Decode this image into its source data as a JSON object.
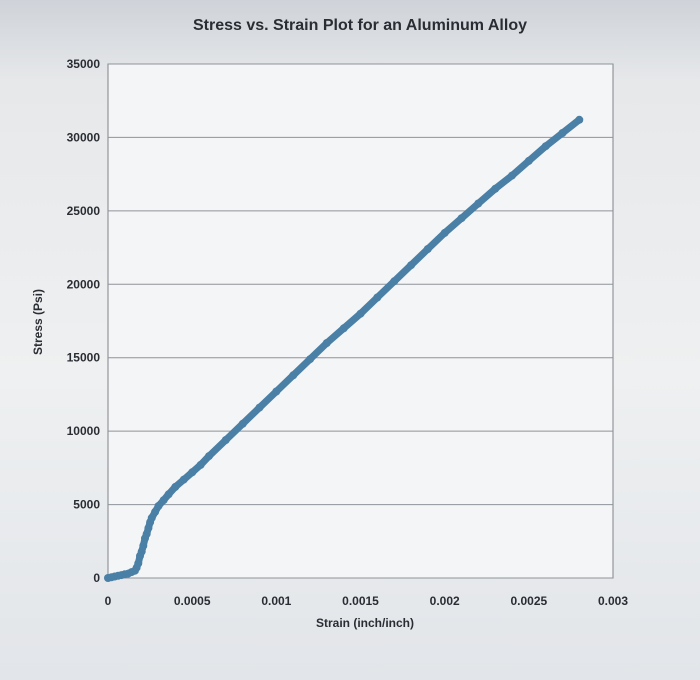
{
  "chart_data": {
    "type": "scatter",
    "title": "Stress vs. Strain Plot for an Aluminum Alloy",
    "xlabel": "Strain (inch/inch)",
    "ylabel": "Stress (Psi)",
    "xlim": [
      0,
      0.003
    ],
    "ylim": [
      0,
      35000
    ],
    "x_ticks": [
      0,
      0.0005,
      0.001,
      0.0015,
      0.002,
      0.0025,
      0.003
    ],
    "x_tick_labels": [
      "0",
      "0.0005",
      "0.001",
      "0.0015",
      "0.002",
      "0.0025",
      "0.003"
    ],
    "y_ticks": [
      0,
      5000,
      10000,
      15000,
      20000,
      25000,
      30000,
      35000
    ],
    "y_tick_labels": [
      "0",
      "5000",
      "10000",
      "15000",
      "20000",
      "25000",
      "30000",
      "35000"
    ],
    "grid": true,
    "legend": "none",
    "series_color": "#4a7fa6",
    "points": [
      [
        0.0,
        0
      ],
      [
        2e-05,
        50
      ],
      [
        4e-05,
        100
      ],
      [
        6e-05,
        150
      ],
      [
        8e-05,
        200
      ],
      [
        0.0001,
        250
      ],
      [
        0.00012,
        300
      ],
      [
        0.00014,
        400
      ],
      [
        0.00016,
        500
      ],
      [
        0.00017,
        700
      ],
      [
        0.00018,
        1000
      ],
      [
        0.00019,
        1500
      ],
      [
        0.0002,
        1800
      ],
      [
        0.00021,
        2200
      ],
      [
        0.00022,
        2700
      ],
      [
        0.00023,
        3000
      ],
      [
        0.00024,
        3400
      ],
      [
        0.00025,
        3800
      ],
      [
        0.00026,
        4100
      ],
      [
        0.00028,
        4500
      ],
      [
        0.0003,
        4900
      ],
      [
        0.00033,
        5300
      ],
      [
        0.00036,
        5700
      ],
      [
        0.0004,
        6200
      ],
      [
        0.00045,
        6700
      ],
      [
        0.0005,
        7200
      ],
      [
        0.00055,
        7700
      ],
      [
        0.0006,
        8300
      ],
      [
        0.0007,
        9400
      ],
      [
        0.0008,
        10500
      ],
      [
        0.0009,
        11600
      ],
      [
        0.001,
        12700
      ],
      [
        0.0011,
        13800
      ],
      [
        0.0012,
        14900
      ],
      [
        0.0013,
        16000
      ],
      [
        0.0014,
        17000
      ],
      [
        0.0015,
        18000
      ],
      [
        0.0016,
        19100
      ],
      [
        0.0017,
        20200
      ],
      [
        0.0018,
        21300
      ],
      [
        0.0019,
        22400
      ],
      [
        0.002,
        23500
      ],
      [
        0.0021,
        24500
      ],
      [
        0.0022,
        25500
      ],
      [
        0.0023,
        26500
      ],
      [
        0.0024,
        27400
      ],
      [
        0.0025,
        28400
      ],
      [
        0.0026,
        29400
      ],
      [
        0.0027,
        30300
      ],
      [
        0.0028,
        31200
      ]
    ]
  }
}
